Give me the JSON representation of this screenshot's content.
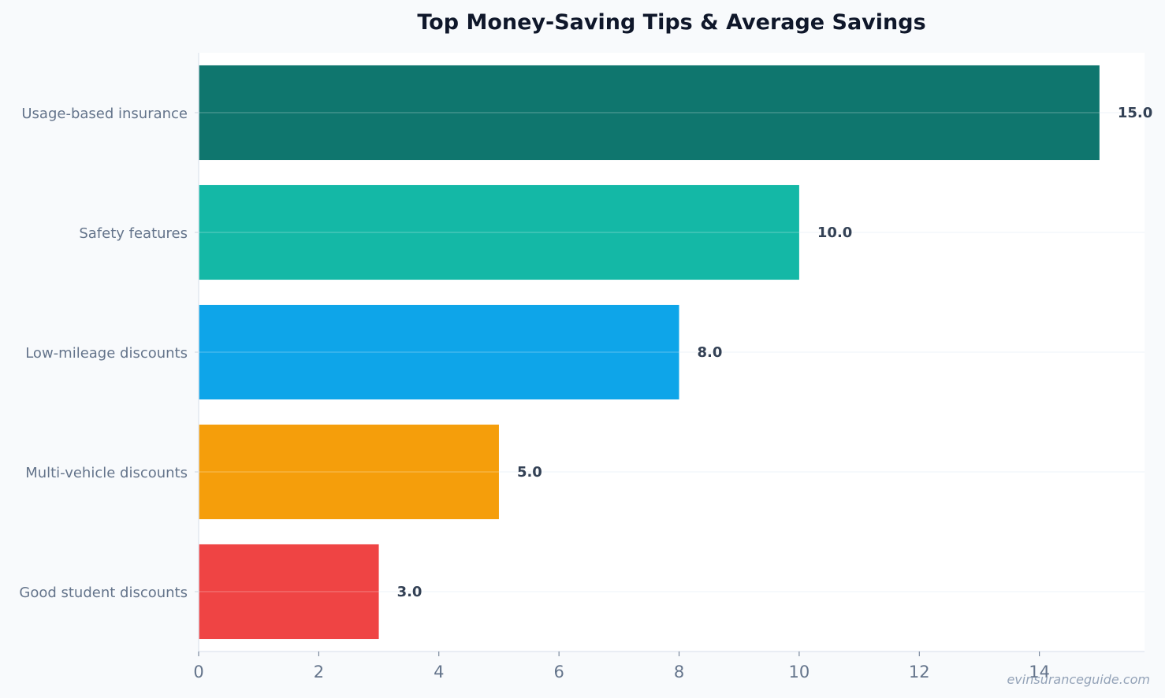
{
  "chart_data": {
    "type": "bar",
    "orientation": "horizontal",
    "title": "Top Money-Saving Tips & Average Savings",
    "xlabel": "",
    "ylabel": "",
    "categories": [
      "Usage-based insurance",
      "Safety features",
      "Low-mileage discounts",
      "Multi-vehicle discounts",
      "Good student discounts"
    ],
    "values": [
      15.0,
      10.0,
      8.0,
      5.0,
      3.0
    ],
    "value_labels": [
      "15.0",
      "10.0",
      "8.0",
      "5.0",
      "3.0"
    ],
    "colors": [
      "#0f766e",
      "#14b8a6",
      "#0ea5e9",
      "#f59e0b",
      "#ef4444"
    ],
    "xlim": [
      0,
      15.75
    ],
    "xticks": [
      0,
      2,
      4,
      6,
      8,
      10,
      12,
      14
    ],
    "xtick_labels": [
      "0",
      "2",
      "4",
      "6",
      "8",
      "10",
      "12",
      "14"
    ],
    "grid": "horizontal lines at categories",
    "legend": "none"
  },
  "watermark": "evinsuranceguide.com"
}
